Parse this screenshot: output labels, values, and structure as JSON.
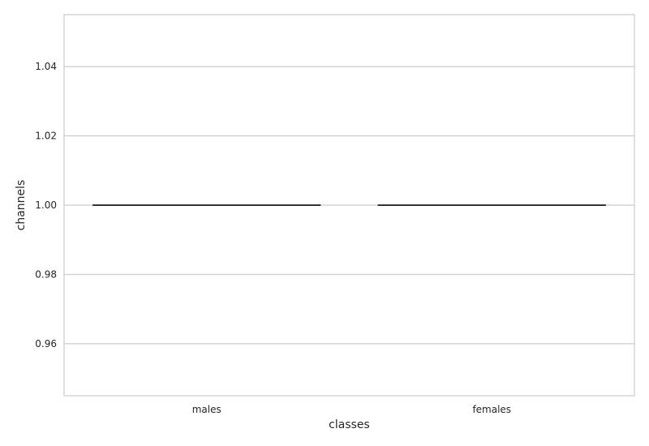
{
  "chart_data": {
    "type": "box",
    "xlabel": "classes",
    "ylabel": "channels",
    "categories": [
      "males",
      "females"
    ],
    "values": [
      {
        "category": "males",
        "min": 1.0,
        "q1": 1.0,
        "median": 1.0,
        "q3": 1.0,
        "max": 1.0
      },
      {
        "category": "females",
        "min": 1.0,
        "q1": 1.0,
        "median": 1.0,
        "q3": 1.0,
        "max": 1.0
      }
    ],
    "ylim": [
      0.945,
      1.055
    ],
    "yticks": [
      "0.96",
      "0.98",
      "1.00",
      "1.02",
      "1.04"
    ],
    "grid": "horizontal",
    "colors": {
      "grid": "#cccccc",
      "spine": "#cccccc",
      "box_line": "#333333",
      "text": "#262626"
    }
  }
}
